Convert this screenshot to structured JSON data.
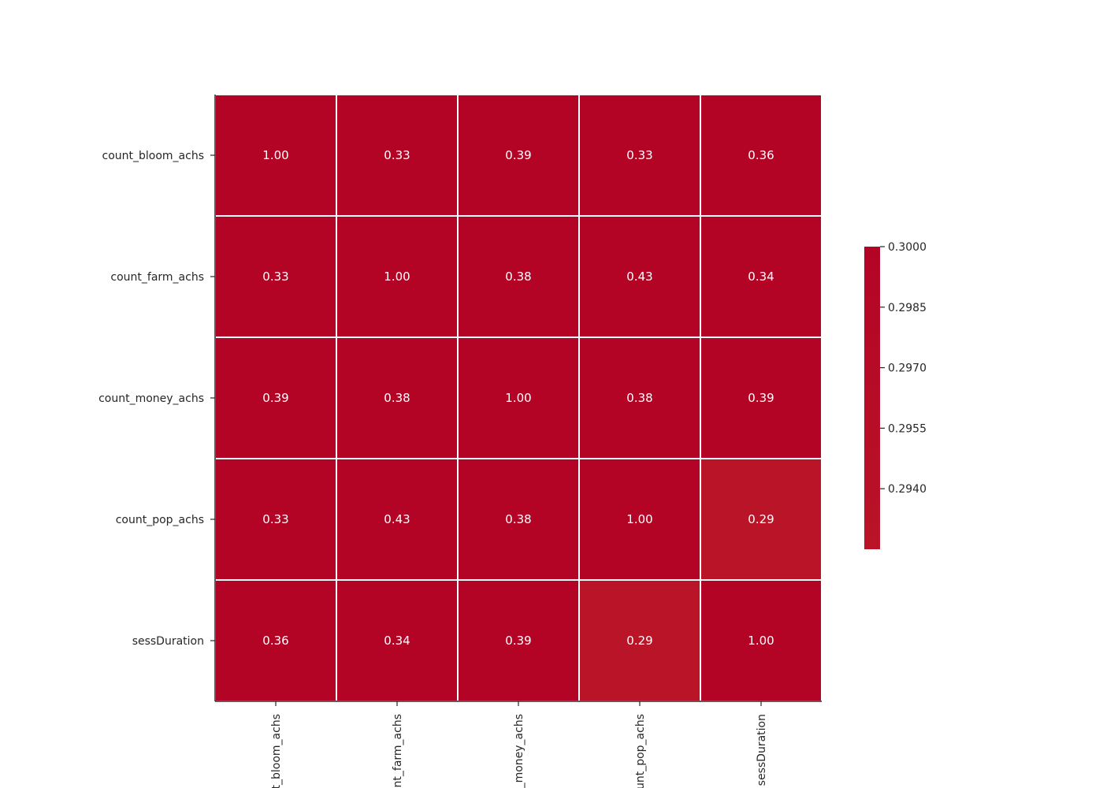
{
  "chart_data": {
    "type": "heatmap",
    "title": "",
    "xlabel": "",
    "ylabel": "",
    "row_labels": [
      "count_bloom_achs",
      "count_farm_achs",
      "count_money_achs",
      "count_pop_achs",
      "sessDuration"
    ],
    "col_labels": [
      "count_bloom_achs",
      "count_farm_achs",
      "count_money_achs",
      "count_pop_achs",
      "sessDuration"
    ],
    "values": [
      [
        1.0,
        0.33,
        0.39,
        0.33,
        0.36
      ],
      [
        0.33,
        1.0,
        0.38,
        0.43,
        0.34
      ],
      [
        0.39,
        0.38,
        1.0,
        0.38,
        0.39
      ],
      [
        0.33,
        0.43,
        0.38,
        1.0,
        0.29
      ],
      [
        0.36,
        0.34,
        0.39,
        0.29,
        1.0
      ]
    ],
    "cell_labels": [
      [
        "1.00",
        "0.33",
        "0.39",
        "0.33",
        "0.36"
      ],
      [
        "0.33",
        "1.00",
        "0.38",
        "0.43",
        "0.34"
      ],
      [
        "0.39",
        "0.38",
        "1.00",
        "0.38",
        "0.39"
      ],
      [
        "0.33",
        "0.43",
        "0.38",
        "1.00",
        "0.29"
      ],
      [
        "0.36",
        "0.34",
        "0.39",
        "0.29",
        "1.00"
      ]
    ],
    "colorbar": {
      "range": [
        0.2925,
        0.3
      ],
      "ticks": [
        0.3,
        0.2985,
        0.297,
        0.2955,
        0.294
      ],
      "tick_labels": [
        "0.3000",
        "0.2985",
        "0.2970",
        "0.2955",
        "0.2940"
      ]
    },
    "colors": {
      "high": "#b40426",
      "low": "#b91427",
      "cell_border": "#ffffff",
      "axis": "#262626"
    }
  }
}
